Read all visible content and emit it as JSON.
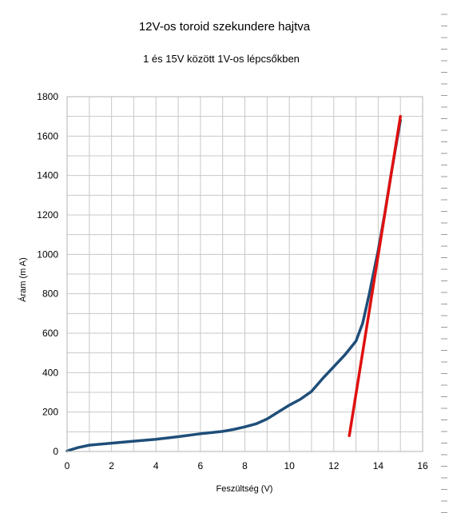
{
  "chart_data": {
    "type": "line",
    "title": "12V-os toroid szekundere hajtva",
    "subtitle": "1 és 15V között 1V-os lépcsőkben",
    "xlabel": "Feszültség (V)",
    "ylabel": "Áram (m A)",
    "xlim": [
      0,
      16
    ],
    "ylim": [
      0,
      1800
    ],
    "xticks": [
      0,
      2,
      4,
      6,
      8,
      10,
      12,
      14,
      16
    ],
    "yticks": [
      0,
      200,
      400,
      600,
      800,
      1000,
      1200,
      1400,
      1600,
      1800
    ],
    "grid": true,
    "legend": "none",
    "series": [
      {
        "color": "#1f4e79",
        "points": [
          [
            0.0,
            3
          ],
          [
            0.5,
            20
          ],
          [
            1.0,
            32
          ],
          [
            2.0,
            42
          ],
          [
            3.0,
            52
          ],
          [
            4.0,
            62
          ],
          [
            5.0,
            75
          ],
          [
            6.0,
            90
          ],
          [
            7.0,
            102
          ],
          [
            7.5,
            112
          ],
          [
            8.0,
            125
          ],
          [
            8.5,
            140
          ],
          [
            9.0,
            165
          ],
          [
            9.5,
            200
          ],
          [
            10.0,
            235
          ],
          [
            10.5,
            265
          ],
          [
            11.0,
            305
          ],
          [
            11.5,
            370
          ],
          [
            12.0,
            430
          ],
          [
            12.5,
            490
          ],
          [
            13.0,
            560
          ],
          [
            13.3,
            650
          ],
          [
            13.6,
            800
          ],
          [
            14.0,
            1020
          ],
          [
            14.3,
            1210
          ],
          [
            14.6,
            1420
          ],
          [
            15.0,
            1680
          ]
        ]
      },
      {
        "color": "#e01010",
        "points": [
          [
            12.7,
            80
          ],
          [
            15.0,
            1700
          ]
        ]
      }
    ]
  }
}
